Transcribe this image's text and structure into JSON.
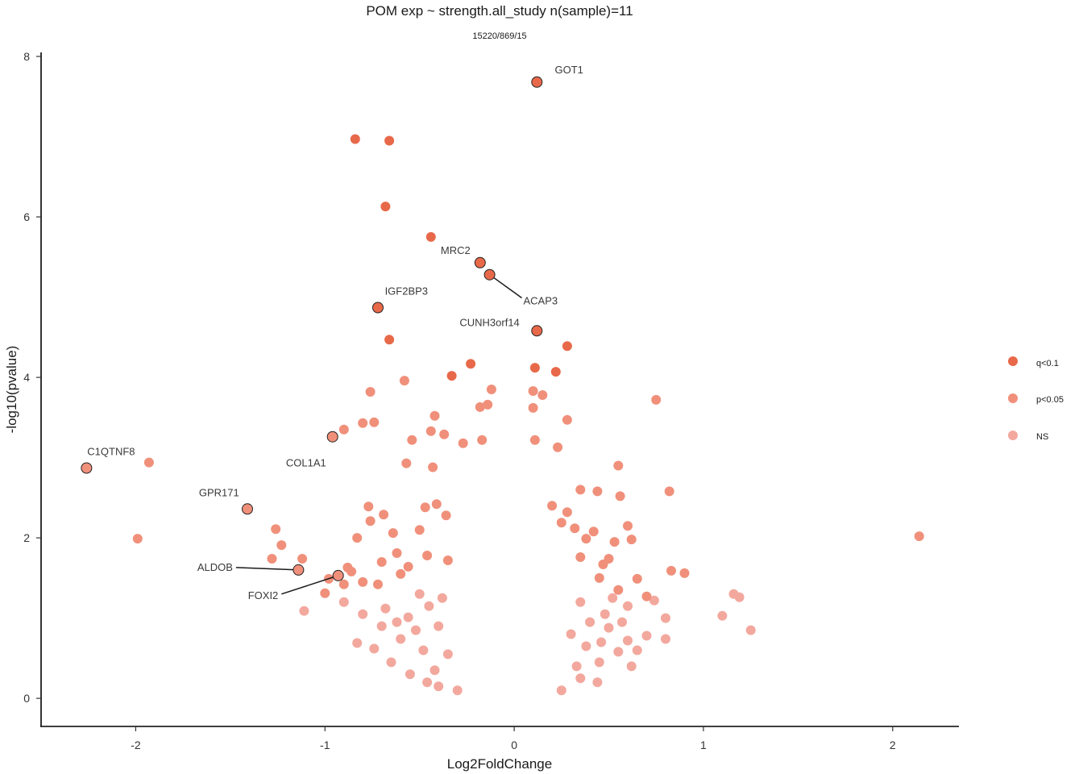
{
  "chart_data": {
    "type": "scatter",
    "title": "POM exp ~ strength.all_study n(sample)=11",
    "subtitle": "15220/869/15",
    "xlabel": "Log2FoldChange",
    "ylabel": "-log10(pvalue)",
    "xlim": [
      -2.5,
      2.35
    ],
    "ylim": [
      -0.35,
      8.05
    ],
    "xticks": [
      -2,
      -1,
      0,
      1,
      2
    ],
    "yticks": [
      0,
      2,
      4,
      6,
      8
    ],
    "grid": false,
    "legend_position": "right",
    "colors": {
      "q": "#E8694A",
      "p": "#F0907B",
      "ns": "#F3A89E",
      "outline": "#222222",
      "connector": "#1a1a1a"
    },
    "series": [
      {
        "name": "q<0.1",
        "points": [
          [
            0.12,
            7.68
          ],
          [
            -0.84,
            6.97
          ],
          [
            -0.66,
            6.95
          ],
          [
            -0.68,
            6.13
          ],
          [
            -0.44,
            5.75
          ],
          [
            -0.18,
            5.43
          ],
          [
            -0.13,
            5.28
          ],
          [
            -0.72,
            4.87
          ],
          [
            0.12,
            4.58
          ],
          [
            -0.66,
            4.47
          ],
          [
            0.28,
            4.39
          ],
          [
            -0.23,
            4.17
          ],
          [
            0.11,
            4.12
          ],
          [
            0.22,
            4.07
          ],
          [
            -0.33,
            4.02
          ]
        ]
      },
      {
        "name": "p<0.05",
        "points": [
          [
            -0.58,
            3.96
          ],
          [
            -0.76,
            3.82
          ],
          [
            0.1,
            3.83
          ],
          [
            0.15,
            3.78
          ],
          [
            0.75,
            3.72
          ],
          [
            -0.12,
            3.85
          ],
          [
            -0.18,
            3.63
          ],
          [
            -0.14,
            3.66
          ],
          [
            -0.42,
            3.52
          ],
          [
            0.1,
            3.62
          ],
          [
            -0.8,
            3.43
          ],
          [
            -0.74,
            3.44
          ],
          [
            -0.9,
            3.35
          ],
          [
            -0.44,
            3.33
          ],
          [
            -0.37,
            3.29
          ],
          [
            0.28,
            3.47
          ],
          [
            -0.54,
            3.22
          ],
          [
            -0.96,
            3.26
          ],
          [
            -0.27,
            3.18
          ],
          [
            -0.17,
            3.22
          ],
          [
            0.11,
            3.22
          ],
          [
            0.23,
            3.13
          ],
          [
            -2.26,
            2.87
          ],
          [
            -1.93,
            2.94
          ],
          [
            -0.57,
            2.93
          ],
          [
            -0.43,
            2.88
          ],
          [
            0.55,
            2.9
          ],
          [
            0.35,
            2.6
          ],
          [
            0.44,
            2.58
          ],
          [
            0.82,
            2.58
          ],
          [
            0.56,
            2.52
          ],
          [
            -1.41,
            2.36
          ],
          [
            -1.26,
            2.11
          ],
          [
            -1.99,
            1.99
          ],
          [
            -1.23,
            1.91
          ],
          [
            -1.28,
            1.74
          ],
          [
            -1.12,
            1.74
          ],
          [
            -1.14,
            1.6
          ],
          [
            -0.93,
            1.53
          ],
          [
            -0.88,
            1.63
          ],
          [
            -0.86,
            1.58
          ],
          [
            -0.98,
            1.49
          ],
          [
            -0.9,
            1.42
          ],
          [
            -1.0,
            1.31
          ],
          [
            -0.83,
            2.0
          ],
          [
            -0.77,
            2.39
          ],
          [
            -0.76,
            2.21
          ],
          [
            -0.69,
            2.29
          ],
          [
            -0.64,
            2.06
          ],
          [
            -0.62,
            1.81
          ],
          [
            -0.56,
            1.64
          ],
          [
            -0.5,
            2.1
          ],
          [
            -0.46,
            1.78
          ],
          [
            -0.47,
            2.38
          ],
          [
            -0.41,
            2.42
          ],
          [
            -0.36,
            2.28
          ],
          [
            -0.35,
            1.72
          ],
          [
            -0.6,
            1.55
          ],
          [
            -0.7,
            1.7
          ],
          [
            -0.8,
            1.45
          ],
          [
            -0.72,
            1.42
          ],
          [
            0.83,
            1.59
          ],
          [
            0.9,
            1.56
          ],
          [
            0.65,
            1.49
          ],
          [
            0.62,
            1.98
          ],
          [
            0.53,
            1.95
          ],
          [
            0.5,
            1.74
          ],
          [
            0.47,
            1.67
          ],
          [
            0.42,
            2.08
          ],
          [
            0.38,
            1.99
          ],
          [
            0.35,
            1.76
          ],
          [
            0.32,
            2.12
          ],
          [
            0.25,
            2.19
          ],
          [
            0.45,
            1.5
          ],
          [
            0.55,
            1.35
          ],
          [
            0.7,
            1.27
          ],
          [
            0.6,
            2.15
          ],
          [
            2.14,
            2.02
          ],
          [
            0.28,
            2.32
          ],
          [
            0.2,
            2.4
          ]
        ]
      },
      {
        "name": "NS",
        "points": [
          [
            1.16,
            1.3
          ],
          [
            1.19,
            1.26
          ],
          [
            1.1,
            1.03
          ],
          [
            1.25,
            0.85
          ],
          [
            0.8,
            1.0
          ],
          [
            0.74,
            1.22
          ],
          [
            0.7,
            0.78
          ],
          [
            0.65,
            0.6
          ],
          [
            0.6,
            0.72
          ],
          [
            0.57,
            0.95
          ],
          [
            0.6,
            1.15
          ],
          [
            0.5,
            0.88
          ],
          [
            0.46,
            0.7
          ],
          [
            0.55,
            0.58
          ],
          [
            0.45,
            0.45
          ],
          [
            0.4,
            0.95
          ],
          [
            0.38,
            0.65
          ],
          [
            0.35,
            1.2
          ],
          [
            0.33,
            0.4
          ],
          [
            0.3,
            0.8
          ],
          [
            0.44,
            0.2
          ],
          [
            0.48,
            1.05
          ],
          [
            0.52,
            1.25
          ],
          [
            0.62,
            0.4
          ],
          [
            0.8,
            0.74
          ],
          [
            -1.11,
            1.09
          ],
          [
            -0.9,
            1.2
          ],
          [
            -0.83,
            0.69
          ],
          [
            -0.8,
            1.05
          ],
          [
            -0.74,
            0.62
          ],
          [
            -0.7,
            0.9
          ],
          [
            -0.68,
            1.12
          ],
          [
            -0.65,
            0.45
          ],
          [
            -0.6,
            0.74
          ],
          [
            -0.56,
            1.01
          ],
          [
            -0.52,
            0.85
          ],
          [
            -0.48,
            0.6
          ],
          [
            -0.45,
            1.15
          ],
          [
            -0.42,
            0.35
          ],
          [
            -0.4,
            0.9
          ],
          [
            -0.38,
            1.25
          ],
          [
            -0.35,
            0.55
          ],
          [
            -0.55,
            0.3
          ],
          [
            -0.46,
            0.2
          ],
          [
            -0.4,
            0.15
          ],
          [
            -0.3,
            0.1
          ],
          [
            0.25,
            0.1
          ],
          [
            0.35,
            0.25
          ],
          [
            -0.62,
            0.95
          ],
          [
            -0.5,
            1.3
          ]
        ]
      }
    ],
    "annotations": [
      {
        "label": "GOT1",
        "point": [
          0.12,
          7.68
        ],
        "label_at": [
          0.29,
          7.83
        ],
        "connector": false
      },
      {
        "label": "MRC2",
        "point": [
          -0.18,
          5.43
        ],
        "label_at": [
          -0.31,
          5.58
        ],
        "connector": false
      },
      {
        "label": "ACAP3",
        "point": [
          -0.13,
          5.28
        ],
        "label_at": [
          0.04,
          4.99
        ],
        "connector": true
      },
      {
        "label": "IGF2BP3",
        "point": [
          -0.72,
          4.87
        ],
        "label_at": [
          -0.57,
          5.07
        ],
        "connector": false
      },
      {
        "label": "CUNH3orf14",
        "point": [
          0.12,
          4.58
        ],
        "label_at": [
          -0.13,
          4.68
        ],
        "connector": false
      },
      {
        "label": "COL1A1",
        "point": [
          -0.96,
          3.26
        ],
        "label_at": [
          -1.1,
          2.93
        ],
        "connector": false
      },
      {
        "label": "C1QTNF8",
        "point": [
          -2.26,
          2.87
        ],
        "label_at": [
          -2.13,
          3.07
        ],
        "connector": false
      },
      {
        "label": "GPR171",
        "point": [
          -1.41,
          2.36
        ],
        "label_at": [
          -1.56,
          2.56
        ],
        "connector": false
      },
      {
        "label": "ALDOB",
        "point": [
          -1.14,
          1.6
        ],
        "label_at": [
          -1.47,
          1.63
        ],
        "connector": true
      },
      {
        "label": "FOXI2",
        "point": [
          -0.93,
          1.53
        ],
        "label_at": [
          -1.23,
          1.3
        ],
        "connector": true
      }
    ]
  },
  "legend": {
    "items": [
      {
        "label": "q<0.1",
        "color": "#E8694A"
      },
      {
        "label": "p<0.05",
        "color": "#F0907B"
      },
      {
        "label": "NS",
        "color": "#F3A89E"
      }
    ]
  }
}
